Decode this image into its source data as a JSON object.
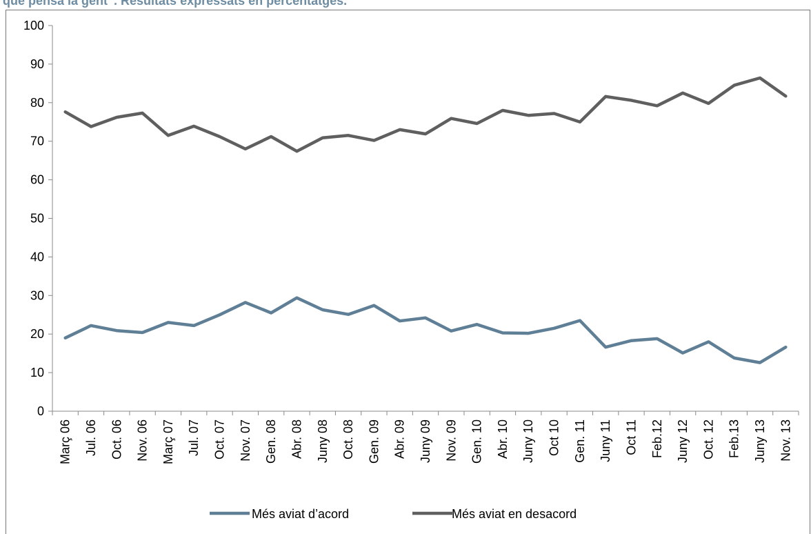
{
  "caption": "que pensa la gent”. Resultats expressats en percentatges.",
  "colors": {
    "caption": "#6E8DA3",
    "acord": "#5F7F96",
    "desacord": "#5F5F5F",
    "axis": "#888888"
  },
  "chart_data": {
    "type": "line",
    "title": "",
    "xlabel": "",
    "ylabel": "",
    "ylim": [
      0,
      100
    ],
    "yticks": [
      0,
      10,
      20,
      30,
      40,
      50,
      60,
      70,
      80,
      90,
      100
    ],
    "grid": false,
    "legend_position": "bottom",
    "categories": [
      "Març 06",
      "Jul. 06",
      "Oct. 06",
      "Nov. 06",
      "Març 07",
      "Jul. 07",
      "Oct. 07",
      "Nov. 07",
      "Gen. 08",
      "Abr. 08",
      "Juny 08",
      "Oct. 08",
      "Gen. 09",
      "Abr. 09",
      "Juny 09",
      "Nov. 09",
      "Gen. 10",
      "Abr. 10",
      "Juny 10",
      "Oct 10",
      "Gen. 11",
      "Juny 11",
      "Oct 11",
      "Feb.12",
      "Juny 12",
      "Oct. 12",
      "Feb.13",
      "Juny 13",
      "Nov. 13"
    ],
    "series": [
      {
        "name": "Més aviat d’acord",
        "color": "#5F7F96",
        "values": [
          19.0,
          22.2,
          20.9,
          20.4,
          23.0,
          22.2,
          25.0,
          28.2,
          25.5,
          29.4,
          26.3,
          25.1,
          27.4,
          23.4,
          24.2,
          20.8,
          22.5,
          20.3,
          20.2,
          21.5,
          23.5,
          16.6,
          18.3,
          18.8,
          15.1,
          18.0,
          13.8,
          12.6,
          16.6
        ]
      },
      {
        "name": "Més aviat en desacord",
        "color": "#5F5F5F",
        "values": [
          77.6,
          73.8,
          76.2,
          77.3,
          71.5,
          73.9,
          71.2,
          68.0,
          71.2,
          67.4,
          70.9,
          71.5,
          70.2,
          73.0,
          71.9,
          75.9,
          74.6,
          78.0,
          76.7,
          77.2,
          75.0,
          81.6,
          80.6,
          79.2,
          82.5,
          79.8,
          84.5,
          86.4,
          81.7
        ]
      }
    ]
  }
}
